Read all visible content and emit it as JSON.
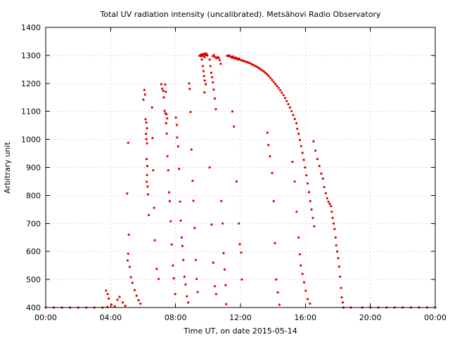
{
  "chart_data": {
    "type": "scatter",
    "title": "Total UV radiation intensity (uncalibrated). Metsähovi Radio Observatory",
    "xlabel": "Time UT, on date 2015-05-14",
    "ylabel": "Arbitrary unit",
    "xlim": [
      0,
      24
    ],
    "ylim": [
      400,
      1400
    ],
    "x_ticks": [
      {
        "value": 0,
        "label": "00:00"
      },
      {
        "value": 4,
        "label": "04:00"
      },
      {
        "value": 8,
        "label": "08:00"
      },
      {
        "value": 12,
        "label": "12:00"
      },
      {
        "value": 16,
        "label": "16:00"
      },
      {
        "value": 20,
        "label": "20:00"
      },
      {
        "value": 24,
        "label": "00:00"
      }
    ],
    "y_ticks": [
      {
        "value": 400,
        "label": "400"
      },
      {
        "value": 500,
        "label": "500"
      },
      {
        "value": 600,
        "label": "600"
      },
      {
        "value": 700,
        "label": "700"
      },
      {
        "value": 800,
        "label": "800"
      },
      {
        "value": 900,
        "label": "900"
      },
      {
        "value": 1000,
        "label": "1000"
      },
      {
        "value": 1100,
        "label": "1100"
      },
      {
        "value": 1200,
        "label": "1200"
      },
      {
        "value": 1300,
        "label": "1300"
      },
      {
        "value": 1400,
        "label": "1400"
      }
    ],
    "grid": true,
    "marker_color": "#e00000",
    "series": [
      {
        "points": [
          [
            0.0,
            400
          ],
          [
            0.5,
            400
          ],
          [
            1.0,
            400
          ],
          [
            1.5,
            400
          ],
          [
            2.0,
            400
          ],
          [
            2.5,
            400
          ],
          [
            3.0,
            400
          ],
          [
            3.5,
            400
          ],
          [
            3.8,
            402
          ],
          [
            3.72,
            460
          ],
          [
            3.82,
            448
          ],
          [
            3.88,
            432
          ],
          [
            4.05,
            410
          ],
          [
            4.25,
            404
          ],
          [
            4.42,
            428
          ],
          [
            4.55,
            438
          ],
          [
            4.75,
            418
          ],
          [
            4.9,
            406
          ],
          [
            5.08,
            988
          ],
          [
            5.02,
            807
          ],
          [
            5.12,
            660
          ],
          [
            5.08,
            592
          ],
          [
            5.05,
            568
          ],
          [
            5.18,
            545
          ],
          [
            5.25,
            508
          ],
          [
            5.35,
            488
          ],
          [
            5.48,
            462
          ],
          [
            5.6,
            442
          ],
          [
            5.72,
            426
          ],
          [
            5.84,
            414
          ],
          [
            6.02,
            1142
          ],
          [
            6.08,
            1177
          ],
          [
            6.12,
            1160
          ],
          [
            6.15,
            1072
          ],
          [
            6.2,
            1060
          ],
          [
            6.24,
            1040
          ],
          [
            6.18,
            1020
          ],
          [
            6.2,
            1001
          ],
          [
            6.24,
            986
          ],
          [
            6.22,
            930
          ],
          [
            6.26,
            905
          ],
          [
            6.24,
            873
          ],
          [
            6.22,
            849
          ],
          [
            6.28,
            832
          ],
          [
            6.3,
            804
          ],
          [
            6.35,
            730
          ],
          [
            6.55,
            1114
          ],
          [
            6.58,
            1005
          ],
          [
            6.62,
            890
          ],
          [
            6.68,
            756
          ],
          [
            6.72,
            640
          ],
          [
            6.84,
            538
          ],
          [
            6.96,
            502
          ],
          [
            7.12,
            1197
          ],
          [
            7.18,
            1181
          ],
          [
            7.24,
            1173
          ],
          [
            7.28,
            1150
          ],
          [
            7.33,
            1102
          ],
          [
            7.38,
            1093
          ],
          [
            7.42,
            1058
          ],
          [
            7.46,
            1021
          ],
          [
            7.5,
            940
          ],
          [
            7.55,
            890
          ],
          [
            7.6,
            811
          ],
          [
            7.64,
            780
          ],
          [
            7.7,
            708
          ],
          [
            7.76,
            625
          ],
          [
            7.84,
            550
          ],
          [
            7.9,
            504
          ],
          [
            7.98,
            448
          ],
          [
            7.36,
            1196
          ],
          [
            7.4,
            1170
          ],
          [
            7.44,
            1090
          ],
          [
            7.48,
            1075
          ],
          [
            8.02,
            1078
          ],
          [
            8.08,
            1052
          ],
          [
            8.1,
            1007
          ],
          [
            8.16,
            975
          ],
          [
            8.22,
            895
          ],
          [
            8.28,
            778
          ],
          [
            8.32,
            710
          ],
          [
            8.38,
            650
          ],
          [
            8.42,
            620
          ],
          [
            8.48,
            570
          ],
          [
            8.55,
            510
          ],
          [
            8.62,
            482
          ],
          [
            8.7,
            440
          ],
          [
            8.78,
            418
          ],
          [
            8.84,
            1200
          ],
          [
            8.88,
            1180
          ],
          [
            8.92,
            1098
          ],
          [
            8.98,
            964
          ],
          [
            9.05,
            852
          ],
          [
            9.1,
            781
          ],
          [
            9.18,
            684
          ],
          [
            9.25,
            570
          ],
          [
            9.3,
            502
          ],
          [
            9.36,
            455
          ],
          [
            9.48,
            1299
          ],
          [
            9.52,
            1301
          ],
          [
            9.56,
            1297
          ],
          [
            9.6,
            1304
          ],
          [
            9.66,
            1302
          ],
          [
            9.7,
            1298
          ],
          [
            9.74,
            1306
          ],
          [
            9.78,
            1294
          ],
          [
            9.84,
            1301
          ],
          [
            9.88,
            1307
          ],
          [
            9.92,
            1303
          ],
          [
            9.96,
            1300
          ],
          [
            9.62,
            1285
          ],
          [
            9.68,
            1262
          ],
          [
            9.72,
            1244
          ],
          [
            9.76,
            1226
          ],
          [
            9.8,
            1210
          ],
          [
            9.86,
            1197
          ],
          [
            9.78,
            1168
          ],
          [
            10.1,
            1285
          ],
          [
            10.15,
            1262
          ],
          [
            10.2,
            1238
          ],
          [
            10.25,
            1222
          ],
          [
            10.3,
            1204
          ],
          [
            10.35,
            1178
          ],
          [
            10.42,
            1146
          ],
          [
            10.48,
            1108
          ],
          [
            10.1,
            900
          ],
          [
            10.22,
            696
          ],
          [
            10.32,
            560
          ],
          [
            10.42,
            476
          ],
          [
            10.5,
            448
          ],
          [
            10.3,
            1297
          ],
          [
            10.36,
            1301
          ],
          [
            10.44,
            1294
          ],
          [
            10.52,
            1290
          ],
          [
            10.6,
            1294
          ],
          [
            10.66,
            1291
          ],
          [
            10.72,
            1283
          ],
          [
            10.78,
            1270
          ],
          [
            10.82,
            780
          ],
          [
            10.9,
            700
          ],
          [
            10.96,
            594
          ],
          [
            11.02,
            536
          ],
          [
            11.08,
            480
          ],
          [
            11.12,
            412
          ],
          [
            11.18,
            1299
          ],
          [
            11.24,
            1297
          ],
          [
            11.3,
            1300
          ],
          [
            11.36,
            1297
          ],
          [
            11.42,
            1295
          ],
          [
            11.48,
            1292
          ],
          [
            11.54,
            1296
          ],
          [
            11.6,
            1291
          ],
          [
            11.66,
            1289
          ],
          [
            11.72,
            1292
          ],
          [
            11.78,
            1288
          ],
          [
            11.84,
            1286
          ],
          [
            11.9,
            1289
          ],
          [
            11.96,
            1285
          ],
          [
            11.5,
            1100
          ],
          [
            11.6,
            1046
          ],
          [
            11.76,
            850
          ],
          [
            11.9,
            700
          ],
          [
            11.96,
            626
          ],
          [
            12.04,
            596
          ],
          [
            12.08,
            500
          ],
          [
            12.05,
            1283
          ],
          [
            12.15,
            1281
          ],
          [
            12.25,
            1279
          ],
          [
            12.35,
            1277
          ],
          [
            12.45,
            1275
          ],
          [
            12.55,
            1273
          ],
          [
            12.65,
            1270
          ],
          [
            12.75,
            1267
          ],
          [
            12.85,
            1264
          ],
          [
            12.95,
            1261
          ],
          [
            13.05,
            1258
          ],
          [
            13.15,
            1254
          ],
          [
            13.25,
            1250
          ],
          [
            13.35,
            1246
          ],
          [
            13.45,
            1242
          ],
          [
            13.55,
            1237
          ],
          [
            13.65,
            1232
          ],
          [
            13.75,
            1226
          ],
          [
            13.85,
            1219
          ],
          [
            13.95,
            1212
          ],
          [
            14.05,
            1205
          ],
          [
            14.15,
            1198
          ],
          [
            14.25,
            1191
          ],
          [
            14.35,
            1184
          ],
          [
            14.45,
            1176
          ],
          [
            14.55,
            1167
          ],
          [
            14.65,
            1158
          ],
          [
            14.75,
            1148
          ],
          [
            14.85,
            1137
          ],
          [
            14.95,
            1126
          ],
          [
            15.05,
            1114
          ],
          [
            15.15,
            1101
          ],
          [
            15.25,
            1087
          ],
          [
            15.35,
            1073
          ],
          [
            15.45,
            1058
          ],
          [
            13.66,
            1024
          ],
          [
            13.72,
            980
          ],
          [
            13.82,
            940
          ],
          [
            13.95,
            880
          ],
          [
            14.05,
            780
          ],
          [
            14.12,
            630
          ],
          [
            14.2,
            500
          ],
          [
            14.3,
            454
          ],
          [
            14.4,
            410
          ],
          [
            15.5,
            1038
          ],
          [
            15.58,
            1020
          ],
          [
            15.66,
            998
          ],
          [
            15.74,
            976
          ],
          [
            15.82,
            952
          ],
          [
            15.9,
            927
          ],
          [
            15.98,
            900
          ],
          [
            16.06,
            872
          ],
          [
            16.14,
            843
          ],
          [
            16.22,
            812
          ],
          [
            16.3,
            780
          ],
          [
            16.38,
            750
          ],
          [
            16.46,
            720
          ],
          [
            16.54,
            690
          ],
          [
            16.5,
            993
          ],
          [
            16.62,
            960
          ],
          [
            16.74,
            930
          ],
          [
            16.86,
            905
          ],
          [
            16.98,
            878
          ],
          [
            17.08,
            860
          ],
          [
            17.16,
            830
          ],
          [
            17.26,
            808
          ],
          [
            17.34,
            790
          ],
          [
            17.42,
            778
          ],
          [
            17.5,
            770
          ],
          [
            17.58,
            762
          ],
          [
            17.62,
            742
          ],
          [
            17.68,
            720
          ],
          [
            17.74,
            700
          ],
          [
            17.8,
            680
          ],
          [
            17.86,
            650
          ],
          [
            17.9,
            622
          ],
          [
            17.96,
            600
          ],
          [
            18.02,
            576
          ],
          [
            18.08,
            546
          ],
          [
            18.14,
            510
          ],
          [
            18.2,
            470
          ],
          [
            18.24,
            436
          ],
          [
            18.3,
            418
          ],
          [
            15.2,
            920
          ],
          [
            15.34,
            850
          ],
          [
            15.46,
            742
          ],
          [
            15.58,
            650
          ],
          [
            15.66,
            590
          ],
          [
            15.72,
            550
          ],
          [
            15.82,
            520
          ],
          [
            15.92,
            490
          ],
          [
            16.02,
            460
          ],
          [
            16.14,
            430
          ],
          [
            16.28,
            414
          ],
          [
            18.35,
            400
          ],
          [
            18.8,
            400
          ],
          [
            19.5,
            400
          ],
          [
            20.0,
            400
          ],
          [
            20.5,
            400
          ],
          [
            21.0,
            400
          ],
          [
            21.5,
            400
          ],
          [
            22.0,
            400
          ],
          [
            22.5,
            400
          ],
          [
            23.0,
            400
          ],
          [
            23.5,
            400
          ],
          [
            24.0,
            400
          ]
        ]
      }
    ]
  }
}
